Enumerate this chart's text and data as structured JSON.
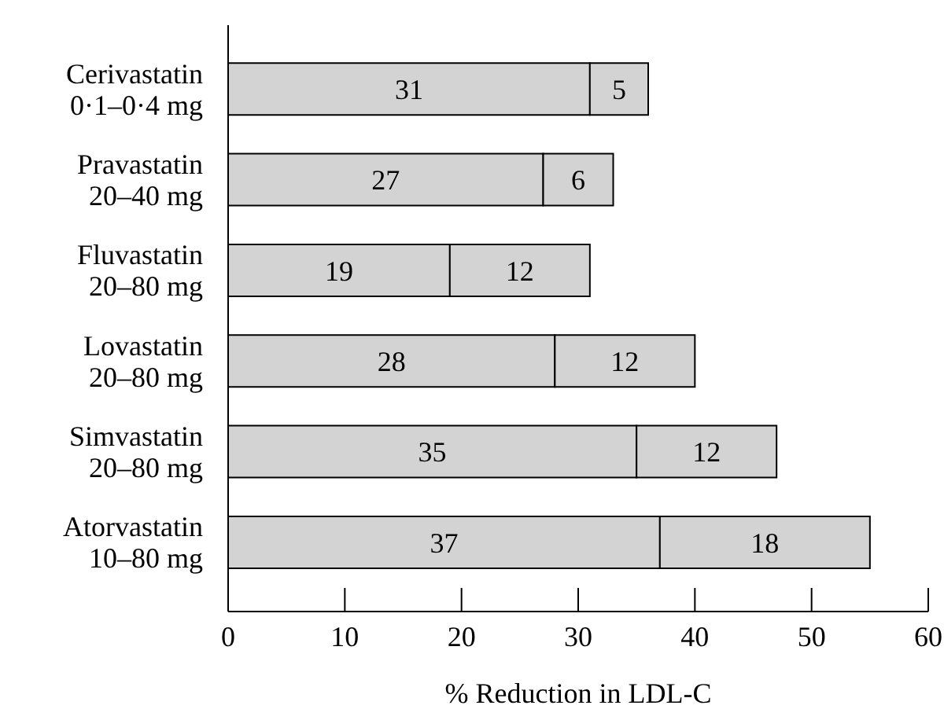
{
  "chart_data": {
    "type": "bar",
    "orientation": "horizontal",
    "stacked": true,
    "xlabel": "% Reduction in LDL-C",
    "categories": [
      "Cerivastatin\n0·1–0·4 mg",
      "Pravastatin\n20–40 mg",
      "Fluvastatin\n20–80 mg",
      "Lovastatin\n20–80 mg",
      "Simvastatin\n20–80 mg",
      "Atorvastatin\n10–80 mg"
    ],
    "series": [
      {
        "color": "#d3d3d3",
        "values": [
          31,
          27,
          19,
          28,
          35,
          37
        ]
      },
      {
        "color": "#d3d3d3",
        "values": [
          5,
          6,
          12,
          12,
          12,
          18
        ]
      }
    ],
    "xlim": [
      0,
      60
    ],
    "xticks": [
      0,
      10,
      20,
      30,
      40,
      50,
      60
    ],
    "data_labels": true,
    "grid": false,
    "legend": false
  }
}
